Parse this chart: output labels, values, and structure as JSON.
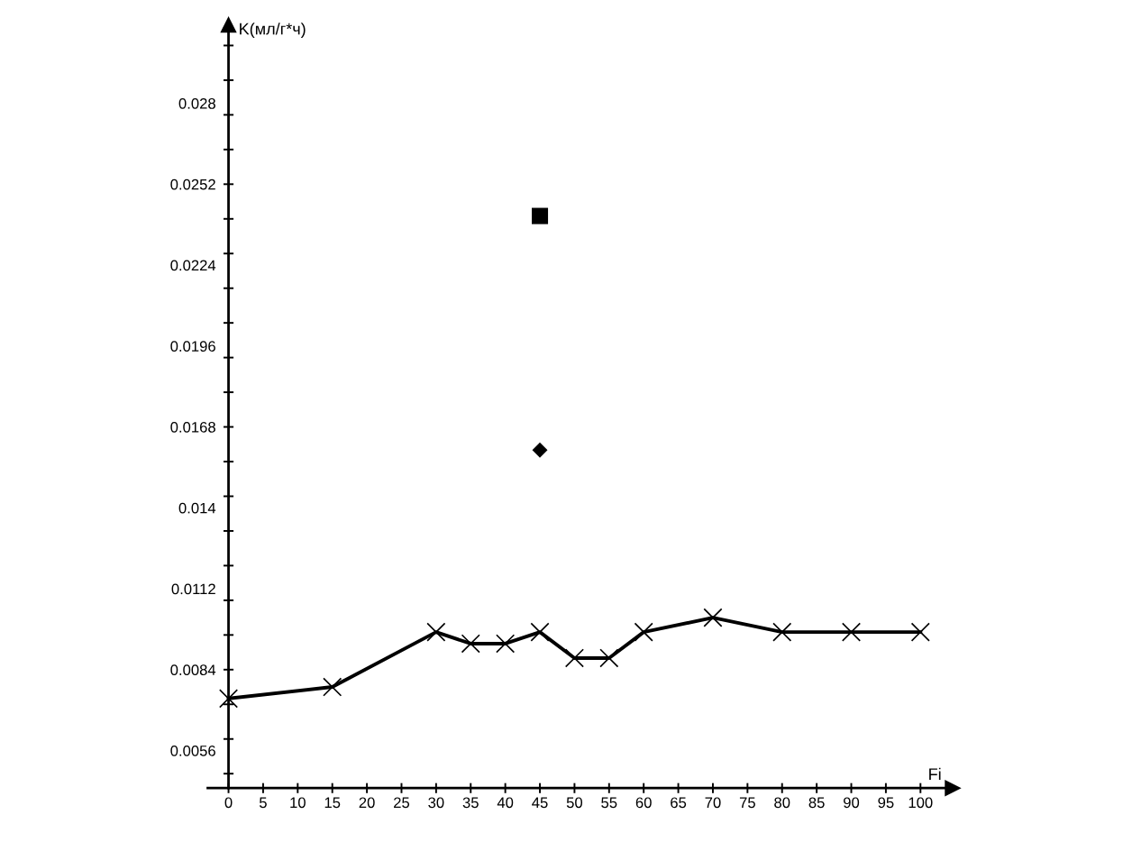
{
  "chart_data": {
    "type": "line",
    "xlabel": "Fi",
    "ylabel": "K(мл/г*ч)",
    "xlim": [
      -3,
      104.6
    ],
    "ylim": [
      0.0043,
      0.0307
    ],
    "xticks": [
      0,
      5,
      10,
      15,
      20,
      25,
      30,
      35,
      40,
      45,
      50,
      55,
      60,
      65,
      70,
      75,
      80,
      85,
      90,
      95,
      100
    ],
    "yticks": [
      {
        "value": 0.0048,
        "label": null
      },
      0.0056,
      {
        "value": 0.006,
        "label": null
      },
      {
        "value": 0.0072,
        "label": null
      },
      0.0084,
      {
        "value": 0.0084,
        "label": null
      },
      {
        "value": 0.0096,
        "label": null
      },
      {
        "value": 0.0108,
        "label": null
      },
      0.0112,
      {
        "value": 0.012,
        "label": null
      },
      {
        "value": 0.0132,
        "label": null
      },
      0.014,
      {
        "value": 0.0144,
        "label": null
      },
      {
        "value": 0.0156,
        "label": null
      },
      0.0168,
      {
        "value": 0.0168,
        "label": null
      },
      {
        "value": 0.018,
        "label": null
      },
      {
        "value": 0.0192,
        "label": null
      },
      0.0196,
      {
        "value": 0.0204,
        "label": null
      },
      {
        "value": 0.0216,
        "label": null
      },
      0.0224,
      {
        "value": 0.0228,
        "label": null
      },
      {
        "value": 0.024,
        "label": null
      },
      0.0252,
      {
        "value": 0.0252,
        "label": null
      },
      {
        "value": 0.0264,
        "label": null
      },
      {
        "value": 0.0276,
        "label": null
      },
      0.028,
      {
        "value": 0.0288,
        "label": null
      },
      {
        "value": 0.03,
        "label": null
      }
    ],
    "series": [
      {
        "color": "#000000",
        "marker": "cross",
        "line_style": "solid",
        "x": [
          0,
          15,
          30,
          35,
          40,
          45,
          50,
          55,
          60,
          70,
          80,
          90,
          100
        ],
        "values": [
          0.0074,
          0.0078,
          0.0097,
          0.0093,
          0.0093,
          0.0097,
          0.0088,
          0.0088,
          0.0097,
          0.0102,
          0.0097,
          0.0097,
          0.0097
        ]
      },
      {
        "type": "scatter",
        "color": "#000000",
        "marker": "square",
        "x": [
          45
        ],
        "values": [
          0.0241
        ]
      },
      {
        "type": "scatter",
        "color": "#000000",
        "marker": "diamond",
        "x": [
          45
        ],
        "values": [
          0.016
        ]
      }
    ]
  }
}
